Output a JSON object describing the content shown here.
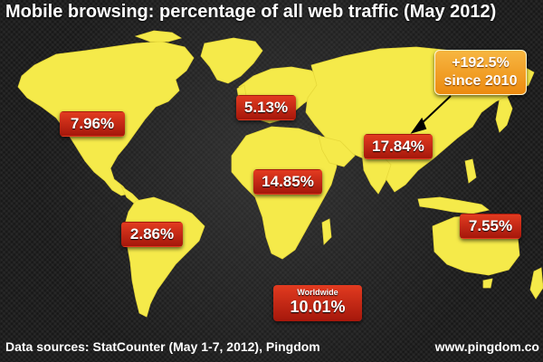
{
  "title": "Mobile browsing: percentage of all web traffic (May 2012)",
  "colors": {
    "land": "#f5ea4a",
    "label_bg": "#c3271a",
    "callout_bg": "#f2a22c",
    "background": "#1f1f1f"
  },
  "regions": {
    "north_america": "7.96%",
    "europe": "5.13%",
    "asia": "17.84%",
    "africa": "14.85%",
    "south_america": "2.86%",
    "oceania": "7.55%"
  },
  "callout": {
    "line1": "+192.5%",
    "line2": "since 2010"
  },
  "worldwide": {
    "caption": "Worldwide",
    "value": "10.01%"
  },
  "footer": {
    "source": "Data sources: StatCounter (May 1-7, 2012), Pingdom",
    "site": "www.pingdom.co"
  }
}
